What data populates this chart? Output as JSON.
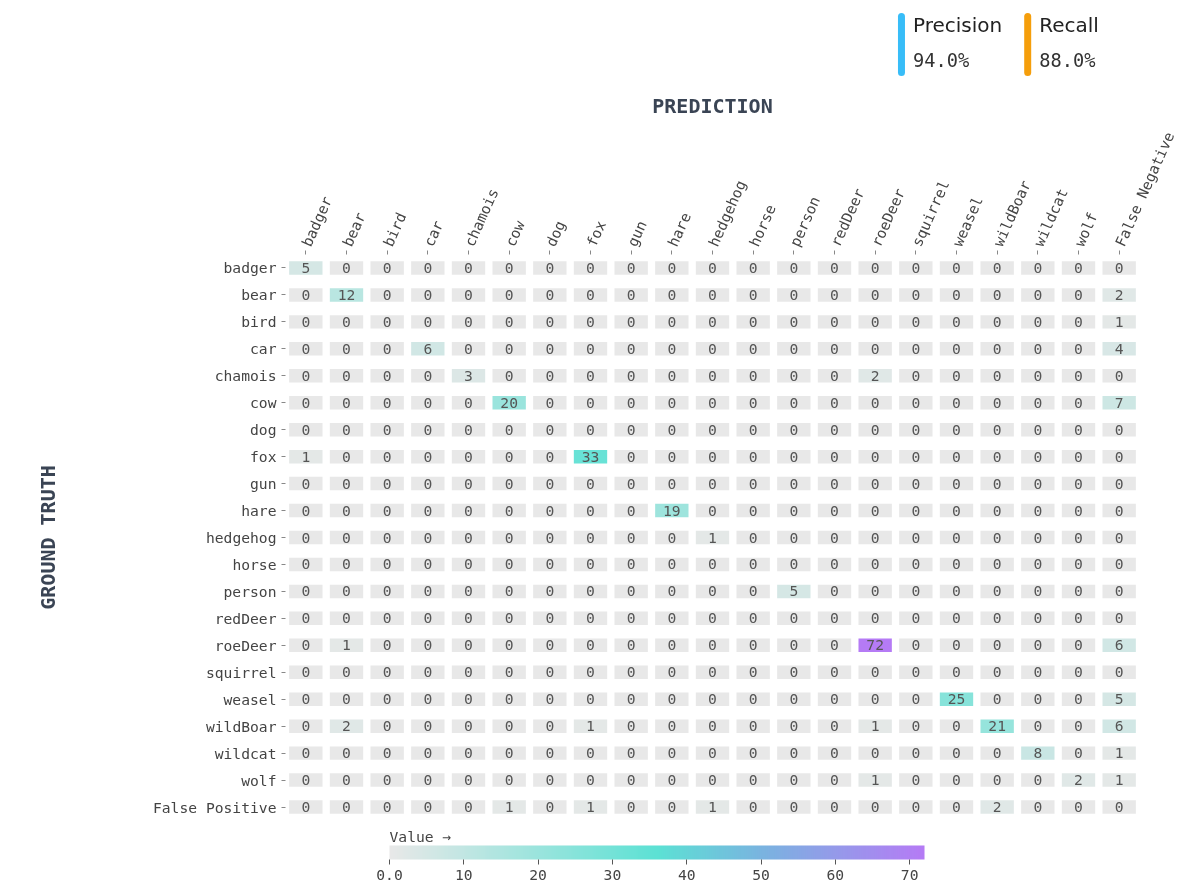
{
  "chart_data": {
    "type": "heatmap",
    "xlabel": "PREDICTION",
    "ylabel": "GROUND TRUTH",
    "clabel": "Value →",
    "categories": [
      "badger",
      "bear",
      "bird",
      "car",
      "chamois",
      "cow",
      "dog",
      "fox",
      "gun",
      "hare",
      "hedgehog",
      "horse",
      "person",
      "redDeer",
      "roeDeer",
      "squirrel",
      "weasel",
      "wildBoar",
      "wildcat",
      "wolf",
      "False Negative"
    ],
    "y_categories": [
      "badger",
      "bear",
      "bird",
      "car",
      "chamois",
      "cow",
      "dog",
      "fox",
      "gun",
      "hare",
      "hedgehog",
      "horse",
      "person",
      "redDeer",
      "roeDeer",
      "squirrel",
      "weasel",
      "wildBoar",
      "wildcat",
      "wolf",
      "False Positive"
    ],
    "cells": [
      [
        5,
        0,
        0,
        0,
        0,
        0,
        0,
        0,
        0,
        0,
        0,
        0,
        0,
        0,
        0,
        0,
        0,
        0,
        0,
        0,
        0
      ],
      [
        0,
        12,
        0,
        0,
        0,
        0,
        0,
        0,
        0,
        0,
        0,
        0,
        0,
        0,
        0,
        0,
        0,
        0,
        0,
        0,
        2
      ],
      [
        0,
        0,
        0,
        0,
        0,
        0,
        0,
        0,
        0,
        0,
        0,
        0,
        0,
        0,
        0,
        0,
        0,
        0,
        0,
        0,
        1
      ],
      [
        0,
        0,
        0,
        6,
        0,
        0,
        0,
        0,
        0,
        0,
        0,
        0,
        0,
        0,
        0,
        0,
        0,
        0,
        0,
        0,
        4
      ],
      [
        0,
        0,
        0,
        0,
        3,
        0,
        0,
        0,
        0,
        0,
        0,
        0,
        0,
        0,
        2,
        0,
        0,
        0,
        0,
        0,
        0
      ],
      [
        0,
        0,
        0,
        0,
        0,
        20,
        0,
        0,
        0,
        0,
        0,
        0,
        0,
        0,
        0,
        0,
        0,
        0,
        0,
        0,
        7
      ],
      [
        0,
        0,
        0,
        0,
        0,
        0,
        0,
        0,
        0,
        0,
        0,
        0,
        0,
        0,
        0,
        0,
        0,
        0,
        0,
        0,
        0
      ],
      [
        1,
        0,
        0,
        0,
        0,
        0,
        0,
        33,
        0,
        0,
        0,
        0,
        0,
        0,
        0,
        0,
        0,
        0,
        0,
        0,
        0
      ],
      [
        0,
        0,
        0,
        0,
        0,
        0,
        0,
        0,
        0,
        0,
        0,
        0,
        0,
        0,
        0,
        0,
        0,
        0,
        0,
        0,
        0
      ],
      [
        0,
        0,
        0,
        0,
        0,
        0,
        0,
        0,
        0,
        19,
        0,
        0,
        0,
        0,
        0,
        0,
        0,
        0,
        0,
        0,
        0
      ],
      [
        0,
        0,
        0,
        0,
        0,
        0,
        0,
        0,
        0,
        0,
        1,
        0,
        0,
        0,
        0,
        0,
        0,
        0,
        0,
        0,
        0
      ],
      [
        0,
        0,
        0,
        0,
        0,
        0,
        0,
        0,
        0,
        0,
        0,
        0,
        0,
        0,
        0,
        0,
        0,
        0,
        0,
        0,
        0
      ],
      [
        0,
        0,
        0,
        0,
        0,
        0,
        0,
        0,
        0,
        0,
        0,
        0,
        5,
        0,
        0,
        0,
        0,
        0,
        0,
        0,
        0
      ],
      [
        0,
        0,
        0,
        0,
        0,
        0,
        0,
        0,
        0,
        0,
        0,
        0,
        0,
        0,
        0,
        0,
        0,
        0,
        0,
        0,
        0
      ],
      [
        0,
        1,
        0,
        0,
        0,
        0,
        0,
        0,
        0,
        0,
        0,
        0,
        0,
        0,
        72,
        0,
        0,
        0,
        0,
        0,
        6
      ],
      [
        0,
        0,
        0,
        0,
        0,
        0,
        0,
        0,
        0,
        0,
        0,
        0,
        0,
        0,
        0,
        0,
        0,
        0,
        0,
        0,
        0
      ],
      [
        0,
        0,
        0,
        0,
        0,
        0,
        0,
        0,
        0,
        0,
        0,
        0,
        0,
        0,
        0,
        0,
        25,
        0,
        0,
        0,
        5
      ],
      [
        0,
        2,
        0,
        0,
        0,
        0,
        0,
        1,
        0,
        0,
        0,
        0,
        0,
        0,
        1,
        0,
        0,
        21,
        0,
        0,
        6
      ],
      [
        0,
        0,
        0,
        0,
        0,
        0,
        0,
        0,
        0,
        0,
        0,
        0,
        0,
        0,
        0,
        0,
        0,
        0,
        8,
        0,
        1
      ],
      [
        0,
        0,
        0,
        0,
        0,
        0,
        0,
        0,
        0,
        0,
        0,
        0,
        0,
        0,
        1,
        0,
        0,
        0,
        0,
        2,
        1
      ],
      [
        0,
        0,
        0,
        0,
        0,
        1,
        0,
        1,
        0,
        0,
        1,
        0,
        0,
        0,
        0,
        0,
        0,
        2,
        0,
        0,
        0
      ]
    ],
    "clim": [
      0,
      72
    ],
    "cticks": [
      {
        "value": 0,
        "label": "0.0"
      },
      10,
      20,
      30,
      40,
      50,
      60,
      70
    ],
    "data_labels": true,
    "annotations": [
      "Precision",
      "94.0%",
      "Recall",
      "88.0%"
    ]
  }
}
